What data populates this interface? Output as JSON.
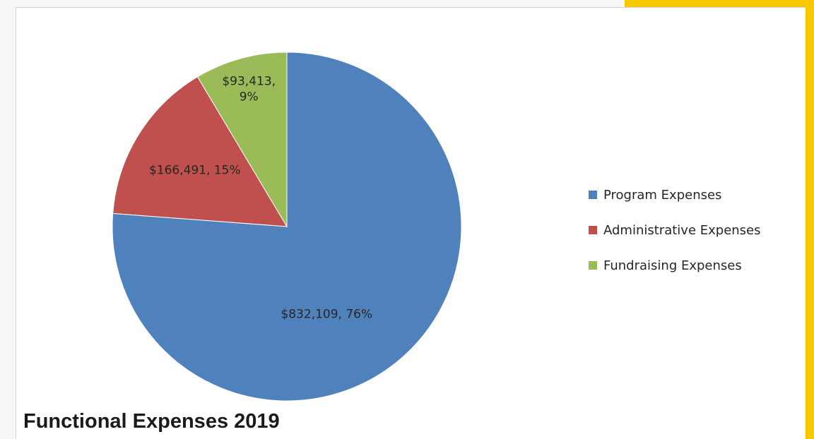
{
  "theme": {
    "accent_color": "#f6c800",
    "panel_color": "#ffffff"
  },
  "caption": "Functional Expenses 2019",
  "chart_data": {
    "type": "pie",
    "title": "",
    "start_angle_deg": 0,
    "direction": "clockwise",
    "legend_position": "right",
    "slices": [
      {
        "name": "Program Expenses",
        "value": 832109,
        "percent": 76,
        "label": "$832,109, 76%",
        "color": "#4f81bd"
      },
      {
        "name": "Administrative Expenses",
        "value": 166491,
        "percent": 15,
        "label": "$166,491, 15%",
        "color": "#c0504d"
      },
      {
        "name": "Fundraising Expenses",
        "value": 93413,
        "percent": 9,
        "label_lines": [
          "$93,413,",
          "9%"
        ],
        "color": "#9bbb59"
      }
    ]
  }
}
